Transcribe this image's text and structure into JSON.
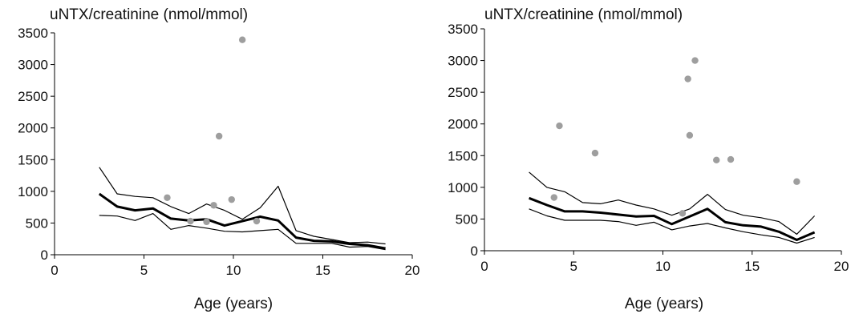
{
  "chart_data": [
    {
      "type": "line",
      "ylabel": "uNTX/creatinine (nmol/mmol)",
      "xlabel": "Age (years)",
      "xlim": [
        0,
        20
      ],
      "ylim": [
        0,
        3500
      ],
      "xticks": [
        0,
        5,
        10,
        15,
        20
      ],
      "yticks": [
        0,
        500,
        1000,
        1500,
        2000,
        2500,
        3000,
        3500
      ],
      "grid": false,
      "series": [
        {
          "role": "median",
          "style": "thick",
          "x": [
            2.5,
            3.5,
            4.5,
            5.5,
            6.5,
            7.5,
            8.5,
            9.5,
            10.5,
            11.5,
            12.5,
            13.5,
            14.5,
            15.5,
            16.5,
            17.5,
            18.5
          ],
          "y": [
            960,
            760,
            700,
            730,
            570,
            540,
            560,
            460,
            530,
            600,
            540,
            270,
            220,
            210,
            170,
            150,
            100
          ]
        },
        {
          "role": "upper",
          "style": "thin",
          "x": [
            2.5,
            3.5,
            4.5,
            5.5,
            6.5,
            7.5,
            8.5,
            9.5,
            10.5,
            11.5,
            12.5,
            13.5,
            14.5,
            15.5,
            16.5,
            17.5,
            18.5
          ],
          "y": [
            1380,
            960,
            920,
            900,
            760,
            650,
            800,
            700,
            560,
            740,
            1080,
            380,
            290,
            240,
            190,
            200,
            170
          ]
        },
        {
          "role": "lower",
          "style": "thin",
          "x": [
            2.5,
            3.5,
            4.5,
            5.5,
            6.5,
            7.5,
            8.5,
            9.5,
            10.5,
            11.5,
            12.5,
            13.5,
            14.5,
            15.5,
            16.5,
            17.5,
            18.5
          ],
          "y": [
            620,
            610,
            540,
            650,
            400,
            460,
            420,
            370,
            360,
            380,
            400,
            180,
            180,
            180,
            120,
            130,
            80
          ]
        }
      ],
      "points": {
        "x": [
          6.3,
          7.6,
          8.5,
          8.9,
          9.2,
          9.9,
          10.5,
          11.3
        ],
        "y": [
          900,
          530,
          520,
          780,
          1870,
          870,
          3390,
          530
        ]
      }
    },
    {
      "type": "line",
      "ylabel": "uNTX/creatinine (nmol/mmol)",
      "xlabel": "Age (years)",
      "xlim": [
        0,
        20
      ],
      "ylim": [
        0,
        3500
      ],
      "xticks": [
        0,
        5,
        10,
        15,
        20
      ],
      "yticks": [
        0,
        500,
        1000,
        1500,
        2000,
        2500,
        3000,
        3500
      ],
      "grid": false,
      "series": [
        {
          "role": "median",
          "style": "thick",
          "x": [
            2.5,
            3.5,
            4.5,
            5.5,
            6.5,
            7.5,
            8.5,
            9.5,
            10.5,
            11.5,
            12.5,
            13.5,
            14.5,
            15.5,
            16.5,
            17.5,
            18.5
          ],
          "y": [
            830,
            720,
            620,
            620,
            600,
            570,
            540,
            550,
            420,
            540,
            660,
            450,
            400,
            380,
            300,
            170,
            290
          ]
        },
        {
          "role": "upper",
          "style": "thin",
          "x": [
            2.5,
            3.5,
            4.5,
            5.5,
            6.5,
            7.5,
            8.5,
            9.5,
            10.5,
            11.5,
            12.5,
            13.5,
            14.5,
            15.5,
            16.5,
            17.5,
            18.5
          ],
          "y": [
            1240,
            1000,
            930,
            760,
            740,
            800,
            720,
            660,
            560,
            660,
            890,
            650,
            560,
            520,
            460,
            260,
            550
          ]
        },
        {
          "role": "lower",
          "style": "thin",
          "x": [
            2.5,
            3.5,
            4.5,
            5.5,
            6.5,
            7.5,
            8.5,
            9.5,
            10.5,
            11.5,
            12.5,
            13.5,
            14.5,
            15.5,
            16.5,
            17.5,
            18.5
          ],
          "y": [
            660,
            550,
            480,
            480,
            480,
            460,
            400,
            450,
            330,
            390,
            430,
            360,
            300,
            250,
            210,
            120,
            210
          ]
        }
      ],
      "points": {
        "x": [
          3.9,
          4.2,
          6.2,
          11.1,
          11.4,
          11.5,
          11.8,
          13.0,
          13.8,
          17.5
        ],
        "y": [
          840,
          1970,
          1540,
          590,
          2710,
          1820,
          3000,
          1430,
          1440,
          1090
        ]
      }
    }
  ]
}
